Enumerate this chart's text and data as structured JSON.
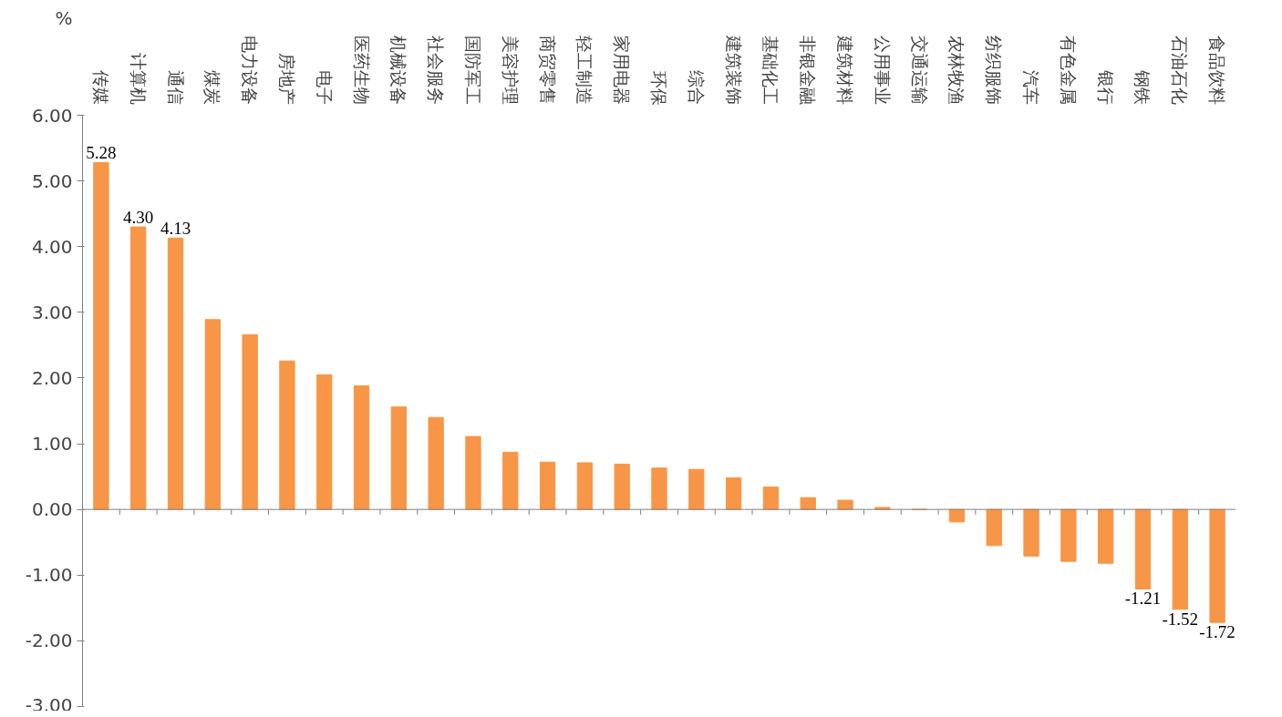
{
  "chart_data": {
    "type": "bar",
    "ylabel": "%",
    "categories": [
      "传媒",
      "计算机",
      "通信",
      "煤炭",
      "电力设备",
      "房地产",
      "电子",
      "医药生物",
      "机械设备",
      "社会服务",
      "国防军工",
      "美容护理",
      "商贸零售",
      "轻工制造",
      "家用电器",
      "环保",
      "综合",
      "建筑装饰",
      "基础化工",
      "非银金融",
      "建筑材料",
      "公用事业",
      "交通运输",
      "农林牧渔",
      "纺织服饰",
      "汽车",
      "有色金属",
      "银行",
      "钢铁",
      "石油石化",
      "食品饮料"
    ],
    "values": [
      5.28,
      4.3,
      4.13,
      2.89,
      2.66,
      2.26,
      2.05,
      1.88,
      1.56,
      1.4,
      1.11,
      0.87,
      0.72,
      0.71,
      0.69,
      0.63,
      0.61,
      0.48,
      0.34,
      0.18,
      0.14,
      0.03,
      0.0,
      -0.19,
      -0.55,
      -0.71,
      -0.79,
      -0.82,
      -1.21,
      -1.52,
      -1.72
    ],
    "value_labels": [
      "5.28",
      "4.30",
      "4.13",
      null,
      null,
      null,
      null,
      null,
      null,
      null,
      null,
      null,
      null,
      null,
      null,
      null,
      null,
      null,
      null,
      null,
      null,
      null,
      null,
      null,
      null,
      null,
      null,
      null,
      "-1.21",
      "-1.52",
      "-1.72"
    ],
    "color": "#f79646",
    "ylim": [
      -3,
      6
    ],
    "yticks": [
      {
        "value": -3,
        "label": "-3.00"
      },
      {
        "value": -2,
        "label": "-2.00"
      },
      {
        "value": -1,
        "label": "-1.00"
      },
      {
        "value": 0,
        "label": "0.00"
      },
      {
        "value": 1,
        "label": "1.00"
      },
      {
        "value": 2,
        "label": "2.00"
      },
      {
        "value": 3,
        "label": "3.00"
      },
      {
        "value": 4,
        "label": "4.00"
      },
      {
        "value": 5,
        "label": "5.00"
      },
      {
        "value": 6,
        "label": "6.00"
      }
    ],
    "ref_lines": [
      {
        "axis": "y",
        "value": 0,
        "color": "#808080"
      }
    ]
  }
}
